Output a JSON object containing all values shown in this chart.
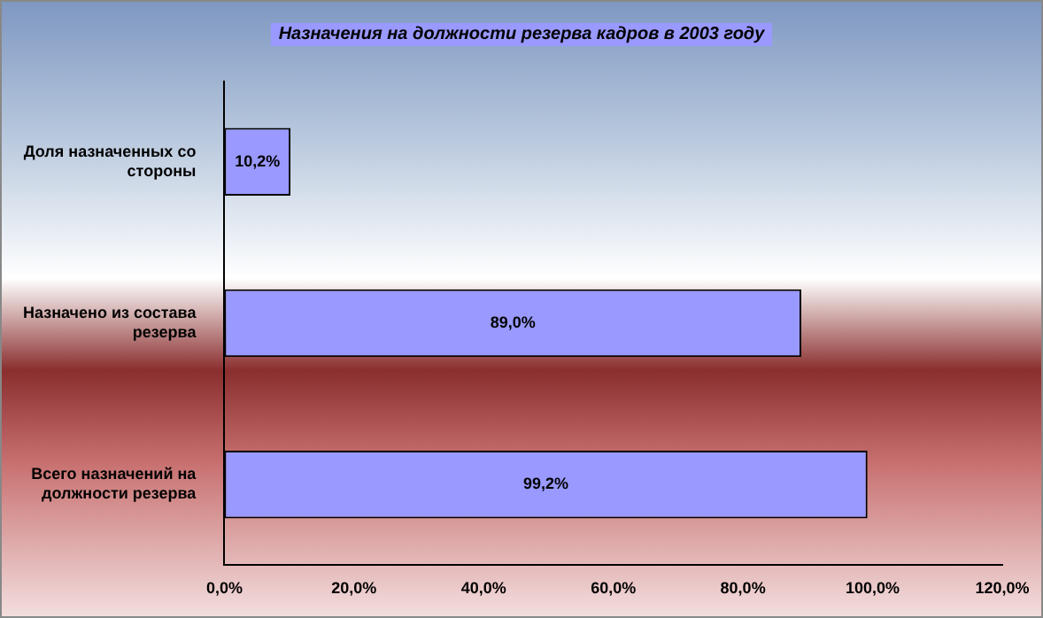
{
  "chart_data": {
    "type": "bar",
    "orientation": "horizontal",
    "title": "Назначения на должности резерва кадров в 2003 году",
    "categories": [
      "Доля назначенных со стороны",
      "Назначено из состава резерва",
      "Всего назначений на должности резерва"
    ],
    "values": [
      10.2,
      89.0,
      99.2
    ],
    "color": "#9999ff",
    "value_labels": [
      "10,2%",
      "89,0%",
      "99,2%"
    ],
    "xlim": [
      0,
      120
    ],
    "xticks": [
      {
        "value": 0,
        "label": "0,0%"
      },
      {
        "value": 20,
        "label": "20,0%"
      },
      {
        "value": 40,
        "label": "40,0%"
      },
      {
        "value": 60,
        "label": "60,0%"
      },
      {
        "value": 80,
        "label": "80,0%"
      },
      {
        "value": 100,
        "label": "100,0%"
      },
      {
        "value": 120,
        "label": "120,0%"
      }
    ],
    "grid": false,
    "legend": false
  }
}
